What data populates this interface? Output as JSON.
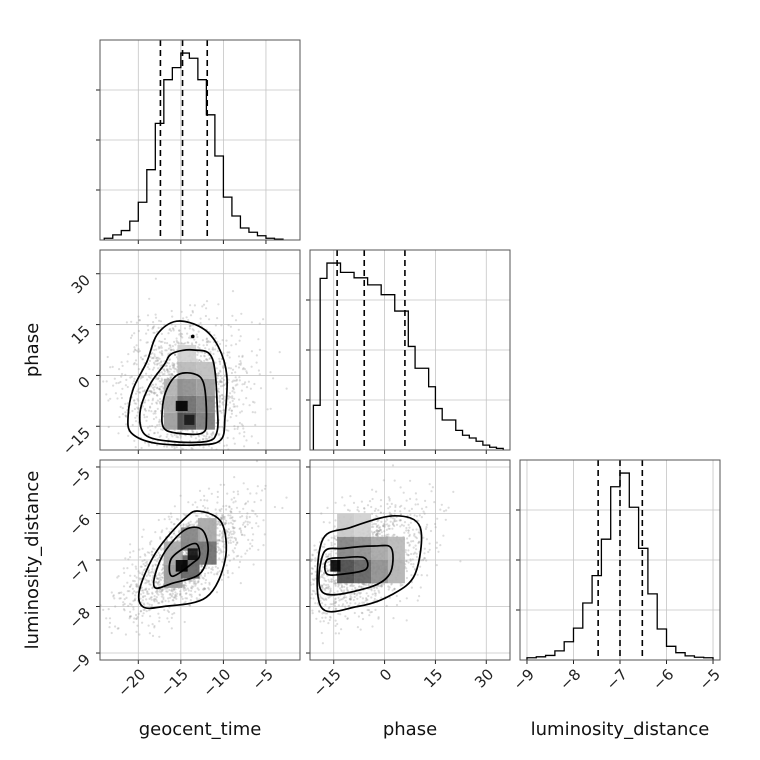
{
  "chart_data": {
    "type": "corner",
    "parameters": [
      "geocent_time",
      "phase",
      "luminosity_distance"
    ],
    "axes": {
      "geocent_time": {
        "label": "geocent_time",
        "range": [
          -24.5,
          -1.0
        ],
        "ticks": [
          -20,
          -15,
          -10,
          -5
        ],
        "tick_labels": [
          "−20",
          "−15",
          "−10",
          "−5"
        ]
      },
      "phase": {
        "label": "phase",
        "range": [
          -22.0,
          37.0
        ],
        "ticks": [
          -15,
          0,
          15,
          30
        ],
        "tick_labels": [
          "−15",
          "0",
          "15",
          "30"
        ]
      },
      "luminosity_distance": {
        "label": "luminosity_distance",
        "range": [
          -9.15,
          -4.85
        ],
        "ticks": [
          -9,
          -8,
          -7,
          -6,
          -5
        ],
        "tick_labels": [
          "−9",
          "−8",
          "−7",
          "−6",
          "−5"
        ]
      }
    },
    "grid": true,
    "histograms": {
      "geocent_time": {
        "bin_edges": [
          -24.0,
          -23.0,
          -22.0,
          -21.0,
          -20.0,
          -19.0,
          -18.0,
          -17.0,
          -16.0,
          -15.0,
          -14.0,
          -13.0,
          -12.0,
          -11.0,
          -10.0,
          -9.0,
          -8.0,
          -7.0,
          -6.0,
          -5.0,
          -4.0,
          -3.0
        ],
        "counts": [
          2,
          6,
          11,
          22,
          44,
          82,
          136,
          187,
          201,
          218,
          212,
          187,
          146,
          98,
          50,
          28,
          14,
          9,
          5,
          2,
          1
        ],
        "quantiles": [
          -17.4,
          -14.8,
          -11.9
        ]
      },
      "phase": {
        "bin_edges": [
          -21.0,
          -19.0,
          -17.0,
          -15.0,
          -13.0,
          -11.0,
          -9.0,
          -7.0,
          -5.0,
          -3.0,
          -1.0,
          1.0,
          3.0,
          5.0,
          7.0,
          9.0,
          11.0,
          13.0,
          15.0,
          17.0,
          19.0,
          21.0,
          23.0,
          25.0,
          27.0,
          29.0,
          31.0,
          33.0,
          35.0
        ],
        "counts": [
          82,
          315,
          343,
          343,
          326,
          326,
          316,
          316,
          303,
          303,
          285,
          285,
          255,
          255,
          190,
          150,
          150,
          116,
          76,
          55,
          55,
          36,
          27,
          22,
          16,
          9,
          5,
          3
        ],
        "quantiles": [
          -14.0,
          -6.0,
          6.0
        ]
      },
      "luminosity_distance": {
        "bin_edges": [
          -9.0,
          -8.8,
          -8.6,
          -8.4,
          -8.2,
          -8.0,
          -7.8,
          -7.6,
          -7.4,
          -7.2,
          -7.0,
          -6.8,
          -6.6,
          -6.4,
          -6.2,
          -6.0,
          -5.8,
          -5.6,
          -5.4,
          -5.2,
          -5.0
        ],
        "counts": [
          5,
          7,
          10,
          20,
          40,
          70,
          125,
          185,
          265,
          380,
          410,
          335,
          245,
          145,
          68,
          30,
          16,
          9,
          6,
          5
        ],
        "quantiles": [
          -7.47,
          -7.0,
          -6.52
        ]
      }
    },
    "density_panels": [
      {
        "x": "geocent_time",
        "y": "phase",
        "cells": [
          {
            "x": -17.0,
            "y": -16.0,
            "w": 2.2,
            "h": 5.0,
            "level": 0.35
          },
          {
            "x": -15.4,
            "y": -16.0,
            "w": 2.2,
            "h": 5.0,
            "level": 0.7
          },
          {
            "x": -13.2,
            "y": -16.0,
            "w": 2.2,
            "h": 5.0,
            "level": 0.5
          },
          {
            "x": -17.0,
            "y": -11.0,
            "w": 2.2,
            "h": 5.0,
            "level": 0.3
          },
          {
            "x": -15.4,
            "y": -11.0,
            "w": 2.2,
            "h": 5.0,
            "level": 0.55
          },
          {
            "x": -13.2,
            "y": -11.0,
            "w": 2.2,
            "h": 5.0,
            "level": 0.45
          },
          {
            "x": -17.0,
            "y": -6.0,
            "w": 2.2,
            "h": 5.0,
            "level": 0.25
          },
          {
            "x": -15.4,
            "y": -6.0,
            "w": 2.2,
            "h": 5.0,
            "level": 0.4
          },
          {
            "x": -13.2,
            "y": -6.0,
            "w": 2.2,
            "h": 5.0,
            "level": 0.35
          },
          {
            "x": -15.4,
            "y": -1.0,
            "w": 2.2,
            "h": 5.0,
            "level": 0.22
          },
          {
            "x": -13.2,
            "y": -1.0,
            "w": 2.2,
            "h": 5.0,
            "level": 0.2
          },
          {
            "x": -15.4,
            "y": 4.0,
            "w": 2.2,
            "h": 5.0,
            "level": 0.12
          },
          {
            "x": -15.6,
            "y": -10.5,
            "w": 1.4,
            "h": 3.0,
            "level": 1.0
          },
          {
            "x": -14.6,
            "y": -14.6,
            "w": 1.2,
            "h": 3.0,
            "level": 0.9
          }
        ],
        "contours": [
          [
            [
              -17.0,
              -15.5
            ],
            [
              -15.5,
              -17.0
            ],
            [
              -12.5,
              -17.0
            ],
            [
              -12.0,
              -13.0
            ],
            [
              -12.3,
              -2.5
            ],
            [
              -13.5,
              0.5
            ],
            [
              -15.5,
              0.0
            ],
            [
              -16.8,
              -5.0
            ],
            [
              -17.2,
              -11.0
            ]
          ],
          [
            [
              -19.2,
              -17.5
            ],
            [
              -16.0,
              -19.5
            ],
            [
              -12.0,
              -19.5
            ],
            [
              -10.8,
              -17.0
            ],
            [
              -10.7,
              -10.0
            ],
            [
              -11.3,
              5.0
            ],
            [
              -13.5,
              7.5
            ],
            [
              -16.0,
              6.5
            ],
            [
              -17.0,
              3.0
            ],
            [
              -18.7,
              -3.0
            ],
            [
              -19.8,
              -11.0
            ]
          ],
          [
            [
              -20.8,
              -17.0
            ],
            [
              -18.0,
              -20.0
            ],
            [
              -13.0,
              -20.5
            ],
            [
              -10.3,
              -19.0
            ],
            [
              -9.8,
              -12.0
            ],
            [
              -9.6,
              0.0
            ],
            [
              -10.6,
              8.5
            ],
            [
              -12.5,
              14.0
            ],
            [
              -15.5,
              16.0
            ],
            [
              -17.8,
              12.0
            ],
            [
              -19.0,
              4.0
            ],
            [
              -20.6,
              -4.0
            ],
            [
              -21.2,
              -12.0
            ]
          ]
        ],
        "dots": [
          [
            -13.6,
            11.5
          ]
        ],
        "scatter": {
          "mean": [
            -14.5,
            -4.0
          ],
          "sd": [
            3.6,
            10.0
          ],
          "corr": 0.0,
          "count": 1500
        }
      },
      {
        "x": "geocent_time",
        "y": "luminosity_distance",
        "cells": [
          {
            "x": -17.0,
            "y": -7.6,
            "w": 2.2,
            "h": 0.5,
            "level": 0.35
          },
          {
            "x": -15.0,
            "y": -7.4,
            "w": 2.2,
            "h": 0.5,
            "level": 0.6
          },
          {
            "x": -13.0,
            "y": -7.1,
            "w": 2.2,
            "h": 0.5,
            "level": 0.55
          },
          {
            "x": -17.0,
            "y": -7.1,
            "w": 2.2,
            "h": 0.5,
            "level": 0.3
          },
          {
            "x": -15.0,
            "y": -6.8,
            "w": 2.2,
            "h": 0.5,
            "level": 0.45
          },
          {
            "x": -13.0,
            "y": -6.6,
            "w": 2.2,
            "h": 0.5,
            "level": 0.3
          },
          {
            "x": -15.6,
            "y": -7.25,
            "w": 1.4,
            "h": 0.25,
            "level": 1.0
          },
          {
            "x": -14.2,
            "y": -7.0,
            "w": 1.2,
            "h": 0.25,
            "level": 0.95
          }
        ],
        "contours": [
          [
            [
              -16.0,
              -7.35
            ],
            [
              -13.5,
              -7.05
            ],
            [
              -12.8,
              -6.9
            ],
            [
              -13.2,
              -6.65
            ],
            [
              -14.7,
              -6.75
            ],
            [
              -16.2,
              -7.0
            ]
          ],
          [
            [
              -18.0,
              -7.6
            ],
            [
              -16.0,
              -7.5
            ],
            [
              -12.8,
              -7.3
            ],
            [
              -11.8,
              -6.8
            ],
            [
              -12.5,
              -6.35
            ],
            [
              -14.5,
              -6.35
            ],
            [
              -16.8,
              -6.8
            ],
            [
              -18.0,
              -7.3
            ]
          ],
          [
            [
              -19.5,
              -8.0
            ],
            [
              -17.0,
              -8.0
            ],
            [
              -12.0,
              -7.8
            ],
            [
              -9.8,
              -7.0
            ],
            [
              -10.2,
              -6.2
            ],
            [
              -12.8,
              -5.95
            ],
            [
              -14.5,
              -6.1
            ],
            [
              -17.8,
              -6.8
            ],
            [
              -19.8,
              -7.6
            ]
          ]
        ],
        "dots": [],
        "scatter": {
          "mean": [
            -14.5,
            -7.0
          ],
          "sd": [
            3.6,
            0.6
          ],
          "corr": 0.65,
          "count": 1500
        }
      },
      {
        "x": "phase",
        "y": "luminosity_distance",
        "cells": [
          {
            "x": -14.0,
            "y": -7.5,
            "w": 5.0,
            "h": 0.5,
            "level": 0.7
          },
          {
            "x": -9.0,
            "y": -7.5,
            "w": 5.0,
            "h": 0.5,
            "level": 0.6
          },
          {
            "x": -4.0,
            "y": -7.5,
            "w": 5.0,
            "h": 0.5,
            "level": 0.4
          },
          {
            "x": 1.0,
            "y": -7.5,
            "w": 5.0,
            "h": 0.5,
            "level": 0.25
          },
          {
            "x": -14.0,
            "y": -7.0,
            "w": 5.0,
            "h": 0.5,
            "level": 0.45
          },
          {
            "x": -9.0,
            "y": -7.0,
            "w": 5.0,
            "h": 0.5,
            "level": 0.4
          },
          {
            "x": -4.0,
            "y": -7.0,
            "w": 5.0,
            "h": 0.5,
            "level": 0.3
          },
          {
            "x": 1.0,
            "y": -7.0,
            "w": 5.0,
            "h": 0.5,
            "level": 0.22
          },
          {
            "x": -14.0,
            "y": -6.5,
            "w": 5.0,
            "h": 0.5,
            "level": 0.15
          },
          {
            "x": -9.0,
            "y": -6.5,
            "w": 5.0,
            "h": 0.5,
            "level": 0.12
          },
          {
            "x": -16.0,
            "y": -7.25,
            "w": 3.0,
            "h": 0.25,
            "level": 1.0
          }
        ],
        "contours": [
          [
            [
              -17.0,
              -7.3
            ],
            [
              -12.0,
              -7.3
            ],
            [
              -5.5,
              -7.2
            ],
            [
              -6.0,
              -6.95
            ],
            [
              -12.0,
              -6.95
            ],
            [
              -17.0,
              -7.0
            ]
          ],
          [
            [
              -18.2,
              -7.7
            ],
            [
              -5.0,
              -7.6
            ],
            [
              1.5,
              -7.3
            ],
            [
              2.0,
              -6.75
            ],
            [
              -3.0,
              -6.7
            ],
            [
              -12.0,
              -6.75
            ],
            [
              -18.0,
              -6.85
            ]
          ],
          [
            [
              -18.8,
              -8.0
            ],
            [
              -8.0,
              -8.0
            ],
            [
              2.0,
              -7.75
            ],
            [
              9.0,
              -7.3
            ],
            [
              10.5,
              -6.3
            ],
            [
              3.0,
              -6.05
            ],
            [
              -10.0,
              -6.3
            ],
            [
              -18.5,
              -6.6
            ]
          ]
        ],
        "dots": [],
        "scatter": {
          "mean": [
            -6.0,
            -7.0
          ],
          "sd": [
            9.0,
            0.6
          ],
          "corr": 0.45,
          "count": 1500
        }
      }
    ]
  }
}
